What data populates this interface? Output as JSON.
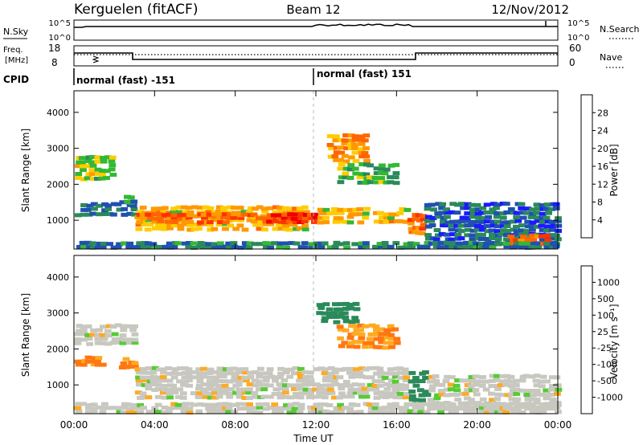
{
  "header": {
    "station": "Kerguelen (fitACF)",
    "beam": "Beam 12",
    "date": "12/Nov/2012"
  },
  "strips": {
    "nsky_label": "N.Sky",
    "nsky_ticks": [
      "10^5",
      "10^0"
    ],
    "nsearch_label": "N.Search",
    "nsearch_ticks": [
      "10^5",
      "10^0"
    ],
    "freq_label_line1": "Freq.",
    "freq_label_line2": "[MHz]",
    "freq_ticks": [
      "18",
      "8"
    ],
    "nave_label": "Nave",
    "nave_ticks": [
      "60",
      "0"
    ],
    "cpid_label": "CPID",
    "cpid_segments": [
      "normal (fast) -151",
      "normal (fast) 151"
    ]
  },
  "panels": {
    "power": {
      "ylabel": "Slant Range [km]",
      "yticks": [
        "4000",
        "3000",
        "2000",
        "1000"
      ],
      "cbar_label": "Power [dB]",
      "cbar_ticks": [
        "28",
        "24",
        "20",
        "16",
        "12",
        "8",
        "4"
      ],
      "cbar_colors": [
        "#1a1aff",
        "#2050b0",
        "#2a8a5a",
        "#33b833",
        "#ffcc00",
        "#ff9900",
        "#ff6600",
        "#ff3300",
        "#ee0000"
      ]
    },
    "velocity": {
      "ylabel": "Slant Range [km]",
      "yticks": [
        "4000",
        "3000",
        "2000",
        "1000"
      ],
      "cbar_label": "Velocity [m s⁻¹]",
      "cbar_ticks": [
        "1000",
        "500",
        "100",
        "25",
        "-25",
        "-100",
        "-500",
        "-1000"
      ],
      "cbar_colors": [
        "#2222cc",
        "#1f6aa8",
        "#2a8a5a",
        "#55cc33",
        "#c8c8c0",
        "#ffaa22",
        "#ff7711",
        "#ff3311",
        "#ee0000"
      ]
    }
  },
  "xaxis": {
    "ticks": [
      "00:00",
      "04:00",
      "08:00",
      "12:00",
      "16:00",
      "20:00",
      "00:00"
    ],
    "label": "Time UT"
  },
  "chart_data": [
    {
      "type": "heatmap",
      "title": "Power",
      "xlabel": "Time UT",
      "ylabel": "Slant Range [km]",
      "xlim_hours": [
        0,
        24
      ],
      "ylim": [
        200,
        4600
      ],
      "colorbar": {
        "label": "Power [dB]",
        "range": [
          0,
          32
        ],
        "ticks": [
          4,
          8,
          12,
          16,
          20,
          24,
          28
        ]
      },
      "regions": [
        {
          "t": [
            0.0,
            1.9
          ],
          "range": [
            2100,
            2800
          ],
          "level": 14
        },
        {
          "t": [
            0.0,
            3.0
          ],
          "range": [
            1100,
            1500
          ],
          "level": 7
        },
        {
          "t": [
            2.2,
            3.0
          ],
          "range": [
            1450,
            1700
          ],
          "level": 10
        },
        {
          "t": [
            3.0,
            11.5
          ],
          "range": [
            700,
            1400
          ],
          "level": 18
        },
        {
          "t": [
            3.0,
            11.0
          ],
          "range": [
            900,
            1200
          ],
          "level": 24
        },
        {
          "t": [
            9.5,
            12.0
          ],
          "range": [
            900,
            1200
          ],
          "level": 28
        },
        {
          "t": [
            12.0,
            16.5
          ],
          "range": [
            900,
            1350
          ],
          "level": 18
        },
        {
          "t": [
            12.5,
            14.5
          ],
          "range": [
            2600,
            3400
          ],
          "level": 20
        },
        {
          "t": [
            13.0,
            16.0
          ],
          "range": [
            2000,
            2600
          ],
          "level": 12
        },
        {
          "t": [
            16.5,
            17.3
          ],
          "range": [
            600,
            1200
          ],
          "level": 22
        },
        {
          "t": [
            17.3,
            24.0
          ],
          "range": [
            300,
            1500
          ],
          "level": 6
        },
        {
          "t": [
            21.5,
            23.5
          ],
          "range": [
            300,
            600
          ],
          "level": 24
        },
        {
          "t": [
            0.0,
            24.0
          ],
          "range": [
            200,
            400
          ],
          "level": 8
        }
      ]
    },
    {
      "type": "heatmap",
      "title": "Velocity",
      "xlabel": "Time UT",
      "ylabel": "Slant Range [km]",
      "xlim_hours": [
        0,
        24
      ],
      "ylim": [
        200,
        4600
      ],
      "colorbar": {
        "label": "Velocity [m s⁻¹]",
        "ticks": [
          1000,
          500,
          100,
          25,
          -25,
          -100,
          -500,
          -1000
        ]
      },
      "regions": [
        {
          "t": [
            0.0,
            3.0
          ],
          "range": [
            2100,
            2700
          ],
          "value": 0
        },
        {
          "t": [
            0.0,
            1.5
          ],
          "range": [
            1500,
            1800
          ],
          "value": -80
        },
        {
          "t": [
            2.2,
            3.0
          ],
          "range": [
            1450,
            1750
          ],
          "value": -80
        },
        {
          "t": [
            3.0,
            16.5
          ],
          "range": [
            600,
            1500
          ],
          "value": 0
        },
        {
          "t": [
            12.0,
            14.0
          ],
          "range": [
            2700,
            3300
          ],
          "value": 100
        },
        {
          "t": [
            13.0,
            16.0
          ],
          "range": [
            2000,
            2700
          ],
          "value": -60
        },
        {
          "t": [
            16.5,
            17.5
          ],
          "range": [
            400,
            1400
          ],
          "value": 120
        },
        {
          "t": [
            17.5,
            24.0
          ],
          "range": [
            300,
            1300
          ],
          "value": 0
        },
        {
          "t": [
            0.0,
            24.0
          ],
          "range": [
            200,
            500
          ],
          "value": 0
        }
      ]
    }
  ]
}
